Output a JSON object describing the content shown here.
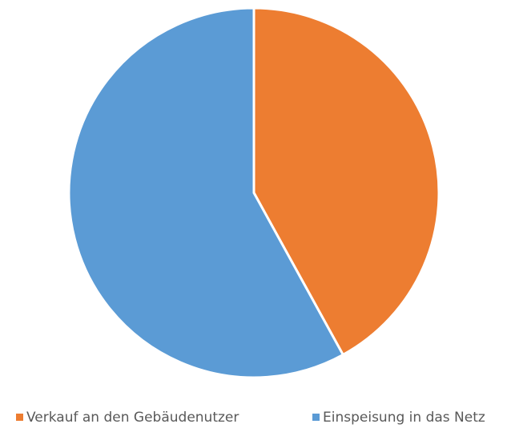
{
  "chart_data": {
    "type": "pie",
    "categories": [
      "Verkauf an den Gebäudenutzer",
      "Einspeisung in das Netz"
    ],
    "values": [
      42,
      58
    ],
    "colors": [
      "#ed7d31",
      "#5b9bd5"
    ],
    "legend": "bottom"
  }
}
